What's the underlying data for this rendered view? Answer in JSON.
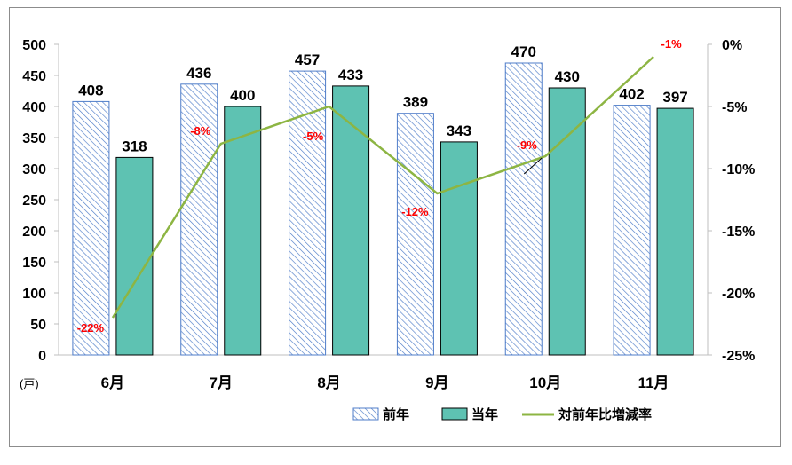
{
  "chart_data": {
    "type": "bar",
    "categories": [
      "6月",
      "7月",
      "8月",
      "9月",
      "10月",
      "11月"
    ],
    "series": [
      {
        "name": "前年",
        "kind": "bar",
        "pattern": "diagonal-hatch",
        "color": "#4f7dc9",
        "values": [
          408,
          436,
          457,
          389,
          470,
          402
        ]
      },
      {
        "name": "当年",
        "kind": "bar",
        "color": "#5ec2b2",
        "values": [
          318,
          400,
          433,
          343,
          430,
          397
        ]
      },
      {
        "name": "対前年比増減率",
        "kind": "line",
        "axis": "right",
        "color": "#8db543",
        "values": [
          -22,
          -8,
          -5,
          -12,
          -9,
          -1
        ],
        "labels": [
          "-22%",
          "-8%",
          "-5%",
          "-12%",
          "-9%",
          "-1%"
        ]
      }
    ],
    "left_axis": {
      "ylim": [
        0,
        500
      ],
      "ticks": [
        "0",
        "50",
        "100",
        "150",
        "200",
        "250",
        "300",
        "350",
        "400",
        "450",
        "500"
      ],
      "unit": "(戸)"
    },
    "right_axis": {
      "ylim": [
        -25,
        0
      ],
      "ticks": [
        "-25%",
        "-20%",
        "-15%",
        "-10%",
        "-5%",
        "0%"
      ]
    },
    "legend": "bottom-right",
    "grid": false
  }
}
